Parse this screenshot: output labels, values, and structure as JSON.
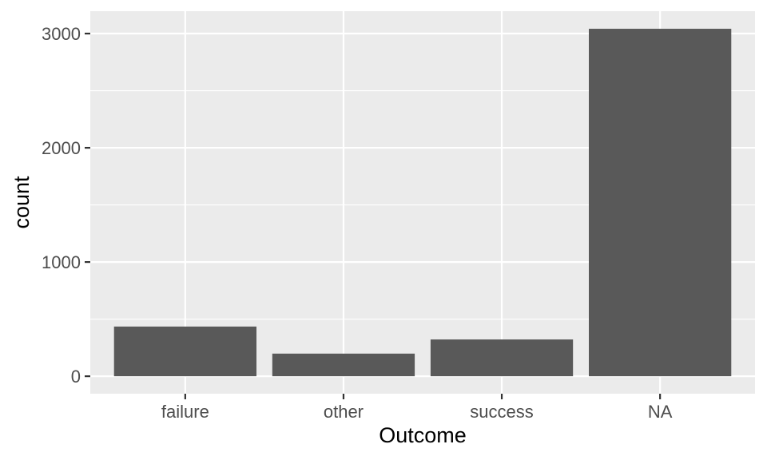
{
  "chart_data": {
    "type": "bar",
    "categories": [
      "failure",
      "other",
      "success",
      "NA"
    ],
    "values": [
      435,
      198,
      322,
      3042
    ],
    "xlabel": "Outcome",
    "ylabel": "count",
    "ylim": [
      -153,
      3196
    ],
    "yticks": [
      0,
      1000,
      2000,
      3000
    ],
    "ytick_labels": [
      "0",
      "1000",
      "2000",
      "3000"
    ],
    "y_minor_ticks": [
      500,
      1500,
      2500
    ],
    "grid": true,
    "legend": "none",
    "colors": {
      "bar": "#595959",
      "panel": "#ebebeb",
      "grid": "#ffffff",
      "axis_text": "#4d4d4d",
      "tick": "#333333"
    }
  }
}
